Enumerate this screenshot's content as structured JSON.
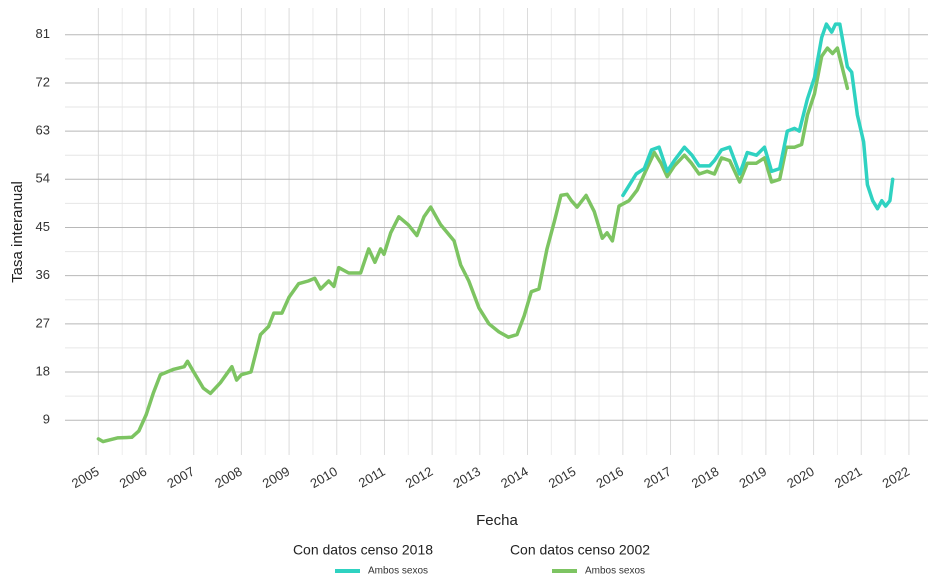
{
  "chart_data": {
    "type": "line",
    "xlabel": "Fecha",
    "ylabel": "Tasa interanual",
    "xlim": [
      2004.3,
      2022.4
    ],
    "ylim": [
      2.5,
      86
    ],
    "xticks": [
      2005,
      2006,
      2007,
      2008,
      2009,
      2010,
      2011,
      2012,
      2013,
      2014,
      2015,
      2016,
      2017,
      2018,
      2019,
      2020,
      2021,
      2022
    ],
    "yticks": [
      9,
      18,
      27,
      36,
      45,
      54,
      63,
      72,
      81
    ],
    "grid": true,
    "legend": "bottom",
    "series": [
      {
        "group": "Con datos censo 2018",
        "name": "Ambos sexos",
        "color": "#2fd2c1",
        "x": [
          2016.0,
          2016.28,
          2016.45,
          2016.6,
          2016.76,
          2016.93,
          2017.08,
          2017.29,
          2017.45,
          2017.6,
          2017.82,
          2017.92,
          2018.07,
          2018.24,
          2018.45,
          2018.61,
          2018.8,
          2018.97,
          2019.12,
          2019.29,
          2019.45,
          2019.6,
          2019.7,
          2019.87,
          2020.02,
          2020.17,
          2020.27,
          2020.38,
          2020.46,
          2020.55,
          2020.71,
          2020.8,
          2020.92,
          2021.05,
          2021.13,
          2021.24,
          2021.34,
          2021.43,
          2021.51,
          2021.6,
          2021.66
        ],
        "values": [
          51,
          55,
          56,
          59.5,
          60,
          55.5,
          57.5,
          60,
          58.5,
          56.5,
          56.5,
          57.5,
          59.5,
          60,
          55,
          59,
          58.5,
          60,
          55.5,
          56,
          63,
          63.5,
          63,
          69,
          73,
          80.5,
          83,
          81.5,
          83,
          83,
          75,
          74,
          66,
          61,
          53,
          50,
          48.5,
          50,
          49,
          50,
          54
        ]
      },
      {
        "group": "Con datos censo 2002",
        "name": "Ambos sexos",
        "color": "#7dc462",
        "x": [
          2005.0,
          2005.1,
          2005.4,
          2005.7,
          2005.85,
          2006.0,
          2006.15,
          2006.3,
          2006.58,
          2006.8,
          2006.87,
          2007.0,
          2007.2,
          2007.35,
          2007.56,
          2007.8,
          2007.9,
          2008.0,
          2008.2,
          2008.4,
          2008.57,
          2008.68,
          2008.85,
          2009.0,
          2009.2,
          2009.4,
          2009.54,
          2009.66,
          2009.83,
          2009.94,
          2010.04,
          2010.25,
          2010.5,
          2010.67,
          2010.8,
          2010.92,
          2010.99,
          2011.13,
          2011.3,
          2011.5,
          2011.68,
          2011.83,
          2011.97,
          2012.18,
          2012.46,
          2012.6,
          2012.77,
          2012.98,
          2013.19,
          2013.4,
          2013.6,
          2013.78,
          2013.93,
          2014.08,
          2014.24,
          2014.41,
          2014.56,
          2014.7,
          2014.83,
          2014.92,
          2015.04,
          2015.23,
          2015.4,
          2015.57,
          2015.67,
          2015.78,
          2015.92,
          2016.13,
          2016.3,
          2016.45,
          2016.66,
          2016.8,
          2016.93,
          2017.08,
          2017.29,
          2017.44,
          2017.6,
          2017.77,
          2017.92,
          2018.07,
          2018.24,
          2018.45,
          2018.61,
          2018.8,
          2018.97,
          2019.12,
          2019.29,
          2019.43,
          2019.6,
          2019.75,
          2019.87,
          2020.02,
          2020.17,
          2020.29,
          2020.4,
          2020.5,
          2020.71
        ],
        "values": [
          5.5,
          5,
          5.7,
          5.8,
          7,
          10,
          14,
          17.5,
          18.5,
          19,
          20,
          18,
          15,
          14,
          16,
          19,
          16.5,
          17.5,
          18,
          25,
          26.5,
          29,
          29,
          32,
          34.5,
          35,
          35.5,
          33.5,
          35,
          34,
          37.5,
          36.5,
          36.5,
          41,
          38.5,
          41,
          40,
          44,
          47,
          45.5,
          43.5,
          47,
          48.8,
          45.5,
          42.5,
          38,
          35,
          30,
          27,
          25.5,
          24.5,
          25,
          28.5,
          33,
          33.5,
          41,
          46,
          51,
          51.2,
          50,
          48.8,
          51,
          48,
          43,
          44,
          42.5,
          49,
          50,
          52,
          55,
          59,
          57,
          54.5,
          56.5,
          58.5,
          57,
          55,
          55.5,
          55,
          58,
          57.5,
          53.5,
          57,
          57,
          58,
          53.5,
          54,
          60,
          60,
          60.5,
          66,
          70,
          77,
          78.5,
          77.5,
          78.5,
          71
        ]
      }
    ]
  }
}
